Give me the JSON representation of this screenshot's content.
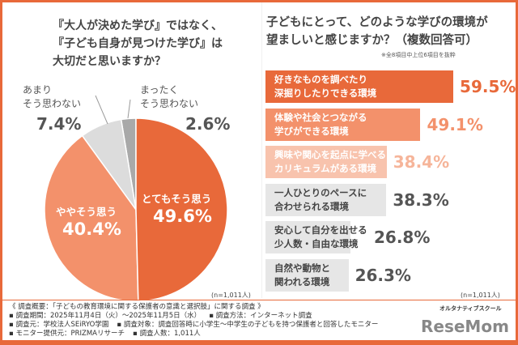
{
  "chart_data": [
    {
      "type": "pie",
      "title": "『大人が決めた学び』ではなく、『子ども自身が見つけた学び』は大切だと思いますか？",
      "title_lines": [
        "『大人が決めた学び』ではなく、",
        "『子ども自身が見つけた学び』は",
        "大切だと思いますか？"
      ],
      "slices": [
        {
          "label": "とてもそう思う",
          "value": 49.6,
          "display": "49.6%",
          "color": "#e8693a"
        },
        {
          "label": "ややそう思う",
          "value": 40.4,
          "display": "40.4%",
          "color": "#f3916b"
        },
        {
          "label_lines": [
            "あまり",
            "そう思わない"
          ],
          "label": "あまりそう思わない",
          "value": 7.4,
          "display": "7.4%",
          "color": "#dcdcdc"
        },
        {
          "label_lines": [
            "まったく",
            "そう思わない"
          ],
          "label": "まったくそう思わない",
          "value": 2.6,
          "display": "2.6%",
          "color": "#a9a9a9"
        }
      ],
      "note": "(n=1,011人)"
    },
    {
      "type": "bar",
      "orientation": "horizontal",
      "title_lines": [
        "子どもにとって、どのような学びの環境が",
        "望ましいと感じますか？（複数回答可）"
      ],
      "subtitle": "※全8項目中上位6項目を抜粋",
      "bars": [
        {
          "lines": [
            "好きなものを調べたり",
            "深掘りしたりできる環境"
          ],
          "value": 59.5,
          "display": "59.5%",
          "color": "#e8693a",
          "text_color": "#ffffff",
          "value_color": "#e8693a"
        },
        {
          "lines": [
            "体験や社会とつながる",
            "学びができる環境"
          ],
          "value": 49.1,
          "display": "49.1%",
          "color": "#f3916b",
          "text_color": "#ffffff",
          "value_color": "#f3916b"
        },
        {
          "lines": [
            "興味や関心を起点に学べる",
            "カリキュラムがある環境"
          ],
          "value": 38.4,
          "display": "38.4%",
          "color": "#f8c3ad",
          "text_color": "#ffffff",
          "value_color": "#f6b59a"
        },
        {
          "lines": [
            "一人ひとりのペースに",
            "合わせられる環境"
          ],
          "value": 38.3,
          "display": "38.3%",
          "color": "#e6e6e6",
          "text_color": "#444444",
          "value_color": "#555555"
        },
        {
          "lines": [
            "安心して自分を出せる",
            "少人数・自由な環境"
          ],
          "value": 26.8,
          "display": "26.8%",
          "color": "#e6e6e6",
          "text_color": "#444444",
          "value_color": "#555555"
        },
        {
          "lines": [
            "自然や動物と",
            "関われる環境"
          ],
          "value": 26.3,
          "display": "26.3%",
          "color": "#e6e6e6",
          "text_color": "#444444",
          "value_color": "#555555"
        }
      ],
      "note": "(n=1,011人)"
    }
  ],
  "footer": {
    "line1": "《 調査概要：「子どもの教育環境に関する保護者の意識と選択肢」に関する調査 》",
    "period": "▪ 調査期間：2025年11月4日（火）〜2025年11月5日（水）",
    "method": "▪ 調査方法：インターネット調査",
    "source": "▪ 調査元：学校法人SEiRYO学園",
    "target": "▪ 調査対象：調査回答時に小学生〜中学生の子どもを持つ保護者と回答したモニター",
    "provider": "▪ モニター提供元：PRIZMAリサーチ",
    "count": "▪ 調査人数：1,011人",
    "logo_text": "オルタナティブスクール",
    "watermark": "ReseMom"
  }
}
